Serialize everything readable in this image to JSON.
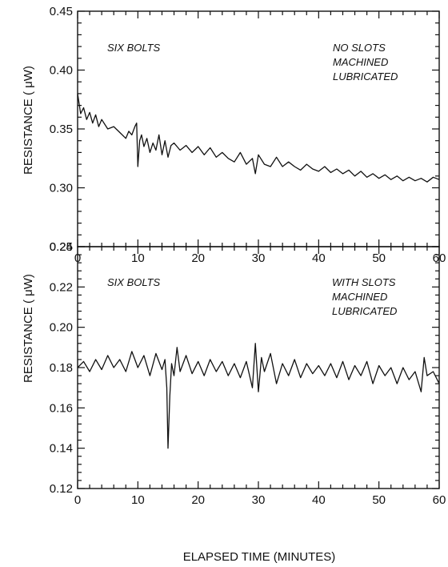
{
  "chart_data": [
    {
      "type": "line",
      "title": "",
      "xlabel": "",
      "ylabel": "RESISTANCE ( μW)",
      "xlim": [
        0,
        60
      ],
      "ylim": [
        0.25,
        0.45
      ],
      "xticks": [
        "0",
        "10",
        "20",
        "30",
        "40",
        "50",
        "60"
      ],
      "yticks": [
        "0.25",
        "0.30",
        "0.35",
        "0.40",
        "0.45"
      ],
      "annotations": {
        "left": [
          "SIX BOLTS"
        ],
        "right": [
          "NO SLOTS",
          "MACHINED",
          "LUBRICATED"
        ]
      },
      "grid": false,
      "series": [
        {
          "x": [
            0,
            0.5,
            1,
            1.5,
            2,
            2.5,
            3,
            3.5,
            4,
            5,
            6,
            7,
            8,
            8.5,
            9,
            9.5,
            9.8,
            10,
            10.3,
            10.6,
            11,
            11.5,
            12,
            12.5,
            13,
            13.5,
            14,
            14.5,
            15,
            15.5,
            16,
            17,
            18,
            19,
            20,
            21,
            22,
            23,
            24,
            25,
            26,
            27,
            28,
            29,
            29.5,
            30,
            31,
            32,
            33,
            34,
            35,
            36,
            37,
            38,
            39,
            40,
            41,
            42,
            43,
            44,
            45,
            46,
            47,
            48,
            49,
            50,
            51,
            52,
            53,
            54,
            55,
            56,
            57,
            58,
            59,
            60
          ],
          "y": [
            0.38,
            0.363,
            0.368,
            0.358,
            0.364,
            0.355,
            0.362,
            0.352,
            0.358,
            0.35,
            0.352,
            0.347,
            0.342,
            0.348,
            0.345,
            0.352,
            0.355,
            0.318,
            0.34,
            0.345,
            0.335,
            0.342,
            0.33,
            0.338,
            0.332,
            0.345,
            0.328,
            0.34,
            0.326,
            0.336,
            0.338,
            0.332,
            0.336,
            0.33,
            0.335,
            0.328,
            0.334,
            0.326,
            0.33,
            0.325,
            0.322,
            0.33,
            0.32,
            0.325,
            0.312,
            0.328,
            0.32,
            0.318,
            0.326,
            0.318,
            0.322,
            0.318,
            0.315,
            0.32,
            0.316,
            0.314,
            0.318,
            0.313,
            0.316,
            0.312,
            0.315,
            0.31,
            0.314,
            0.309,
            0.312,
            0.308,
            0.311,
            0.307,
            0.31,
            0.306,
            0.309,
            0.306,
            0.308,
            0.305,
            0.309,
            0.307
          ]
        }
      ]
    },
    {
      "type": "line",
      "title": "",
      "xlabel": "ELAPSED TIME (MINUTES)",
      "ylabel": "RESISTANCE ( μW)",
      "xlim": [
        0,
        60
      ],
      "ylim": [
        0.12,
        0.24
      ],
      "xticks": [
        "0",
        "10",
        "20",
        "30",
        "40",
        "50",
        "60"
      ],
      "yticks": [
        "0.12",
        "0.14",
        "0.16",
        "0.18",
        "0.20",
        "0.22",
        "0.24"
      ],
      "annotations": {
        "left": [
          "SIX BOLTS"
        ],
        "right": [
          "WITH SLOTS",
          "MACHINED",
          "LUBRICATED"
        ]
      },
      "grid": false,
      "series": [
        {
          "x": [
            0,
            1,
            2,
            3,
            4,
            5,
            6,
            7,
            8,
            9,
            9.5,
            10,
            11,
            12,
            13,
            14,
            14.5,
            14.8,
            15,
            15.3,
            15.6,
            16,
            16.5,
            17,
            18,
            19,
            20,
            21,
            22,
            23,
            24,
            25,
            26,
            27,
            28,
            29,
            29.5,
            30,
            30.5,
            31,
            32,
            33,
            34,
            35,
            36,
            37,
            38,
            39,
            40,
            41,
            42,
            43,
            44,
            45,
            46,
            47,
            48,
            49,
            50,
            51,
            52,
            53,
            54,
            55,
            56,
            57,
            57.5,
            58,
            59,
            60
          ],
          "y": [
            0.18,
            0.183,
            0.178,
            0.184,
            0.179,
            0.186,
            0.18,
            0.184,
            0.178,
            0.188,
            0.184,
            0.18,
            0.186,
            0.176,
            0.187,
            0.179,
            0.184,
            0.17,
            0.14,
            0.166,
            0.182,
            0.176,
            0.19,
            0.178,
            0.186,
            0.177,
            0.183,
            0.176,
            0.184,
            0.178,
            0.183,
            0.176,
            0.182,
            0.175,
            0.183,
            0.17,
            0.192,
            0.168,
            0.185,
            0.178,
            0.187,
            0.172,
            0.182,
            0.176,
            0.184,
            0.175,
            0.182,
            0.177,
            0.181,
            0.176,
            0.182,
            0.175,
            0.183,
            0.174,
            0.181,
            0.176,
            0.183,
            0.172,
            0.181,
            0.176,
            0.18,
            0.172,
            0.18,
            0.174,
            0.178,
            0.168,
            0.185,
            0.176,
            0.178,
            0.172
          ]
        }
      ]
    }
  ]
}
